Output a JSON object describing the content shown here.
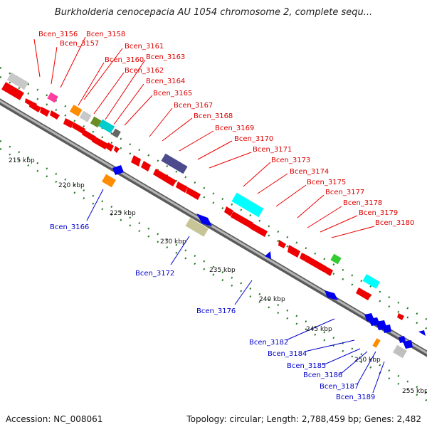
{
  "title": "Burkholderia cenocepacia AU 1054 chromosome 2, complete sequ...",
  "footer": {
    "accession": "Accession: NC_008061",
    "topology": "Topology: circular; Length: 2,788,459 bp; Genes: 2,482"
  },
  "colors": {
    "forward_gene": "#ee0000",
    "reverse_gene": "#0000ee",
    "backbone": "#8a8a8a",
    "tick": "#2a7a2a",
    "top_label": "#dd0000",
    "bottom_label": "#0000cc"
  },
  "kbp_marks": [
    "215 kbp",
    "220 kbp",
    "225 kbp",
    "230 kbp",
    "235 kbp",
    "240 kbp",
    "245 kbp",
    "250 kbp",
    "255 kbp"
  ],
  "top_labels": [
    "Bcen_3156",
    "Bcen_3158",
    "Bcen_3157",
    "Bcen_3161",
    "Bcen_3160",
    "Bcen_3163",
    "Bcen_3162",
    "Bcen_3164",
    "Bcen_3165",
    "Bcen_3167",
    "Bcen_3168",
    "Bcen_3169",
    "Bcen_3170",
    "Bcen_3171",
    "Bcen_3173",
    "Bcen_3174",
    "Bcen_3175",
    "Bcen_3177",
    "Bcen_3178",
    "Bcen_3179",
    "Bcen_3180"
  ],
  "bottom_labels": [
    "Bcen_3166",
    "Bcen_3172",
    "Bcen_3176",
    "Bcen_3182",
    "Bcen_3184",
    "Bcen_3185",
    "Bcen_3186",
    "Bcen_3187",
    "Bcen_3189"
  ]
}
